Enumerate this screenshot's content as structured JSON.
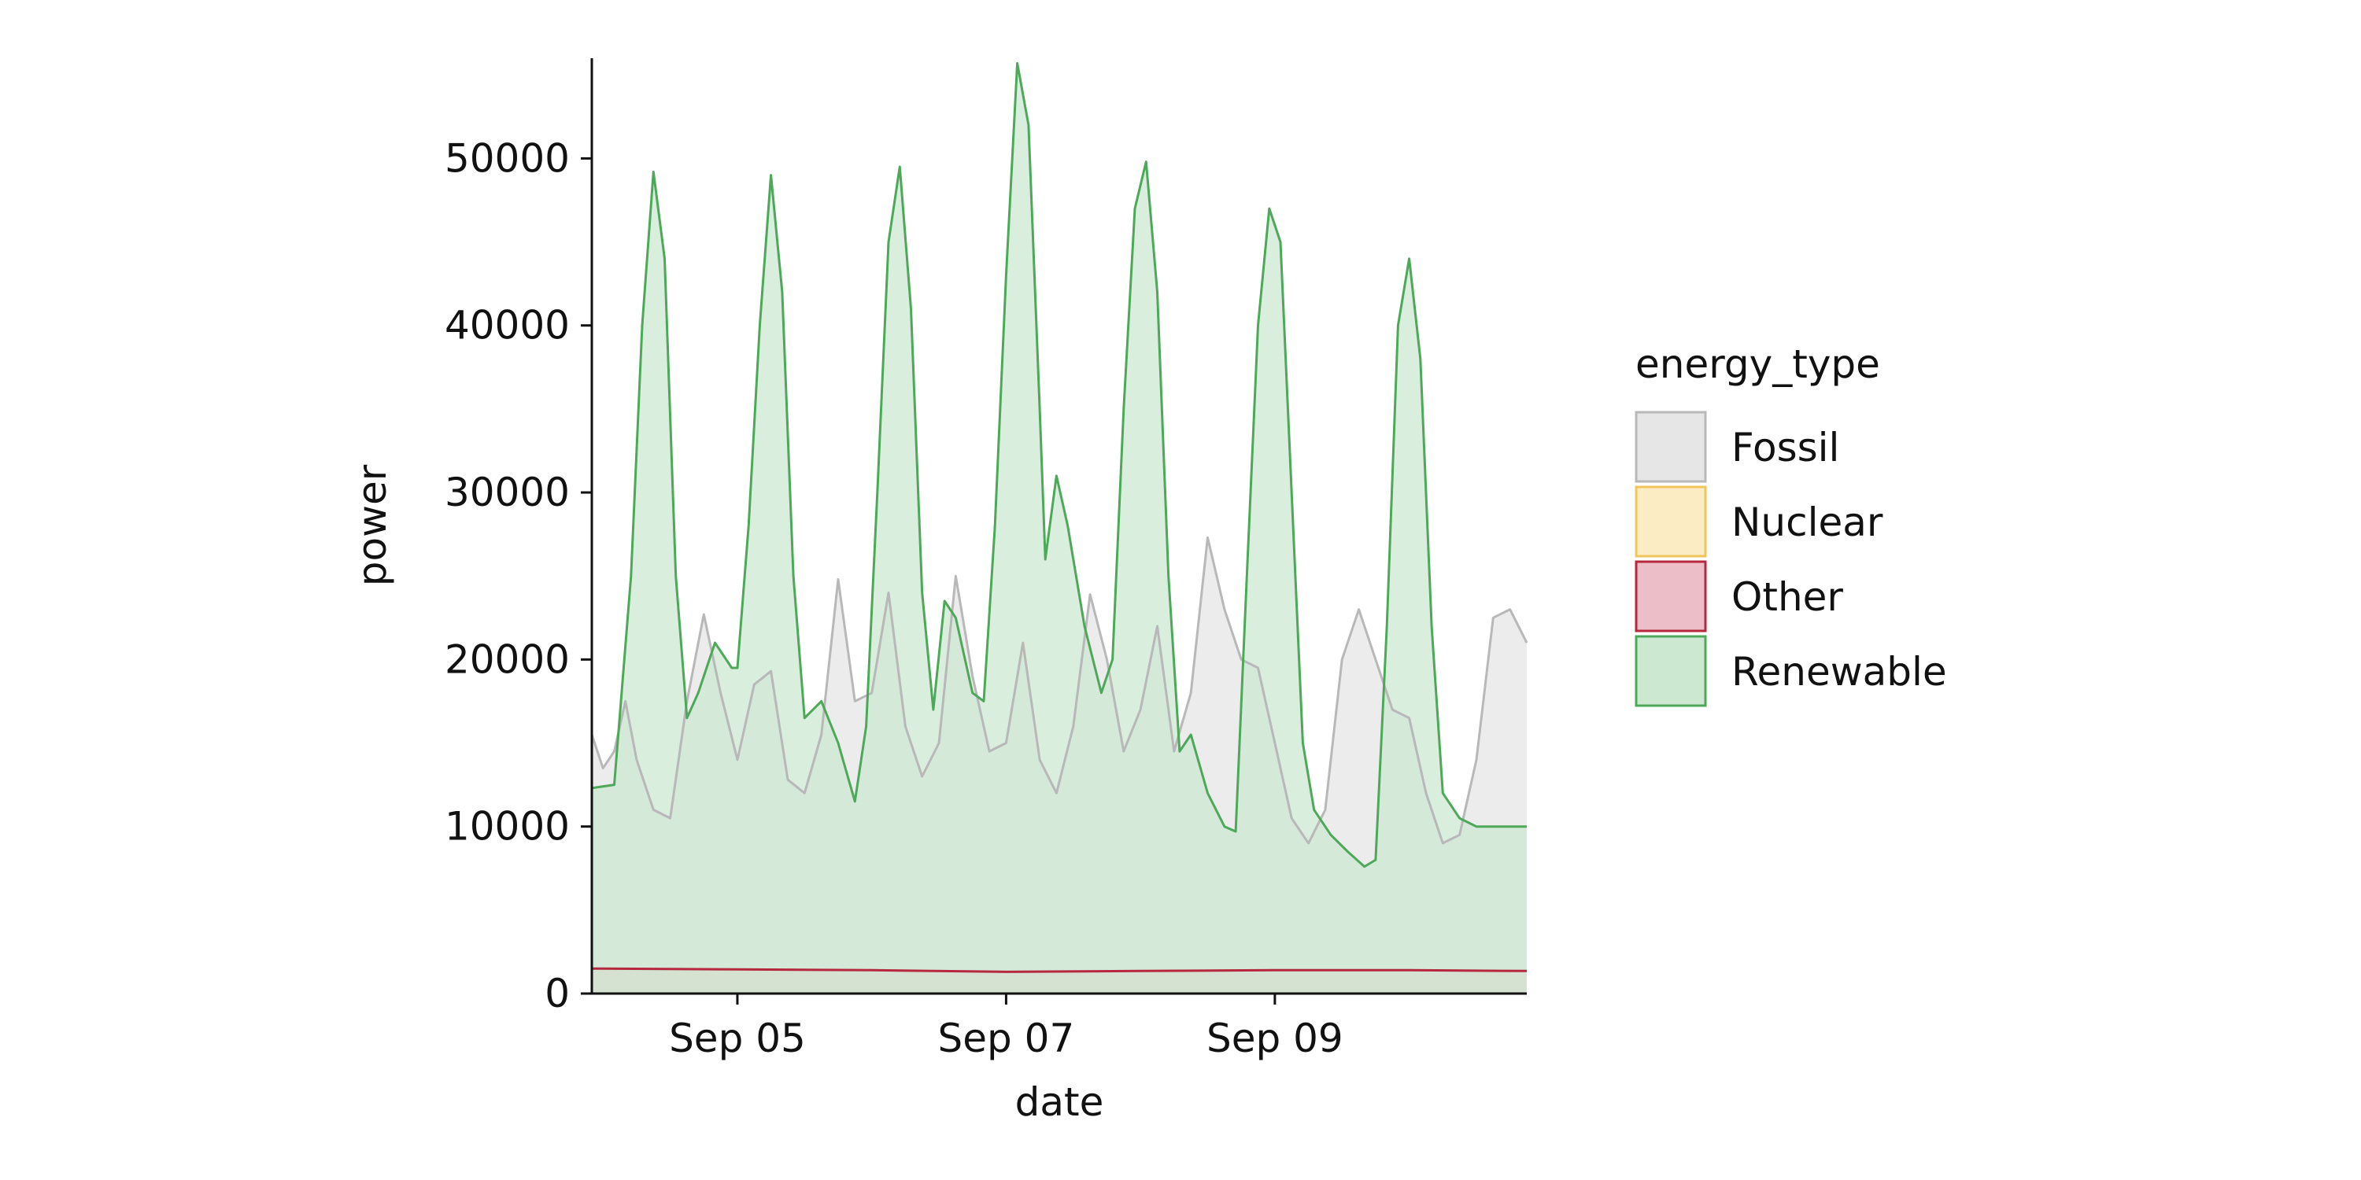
{
  "chart_data": {
    "type": "area",
    "title": "",
    "xlabel": "date",
    "ylabel": "power",
    "xlim": [
      "2022-09-03T22:00",
      "2022-09-10T21:00"
    ],
    "ylim": [
      0,
      56000
    ],
    "x_ticks": [
      {
        "date": "2022-09-05T00:00",
        "label": "Sep 05"
      },
      {
        "date": "2022-09-07T00:00",
        "label": "Sep 07"
      },
      {
        "date": "2022-09-09T00:00",
        "label": "Sep 09"
      }
    ],
    "y_ticks": [
      0,
      10000,
      20000,
      30000,
      40000,
      50000
    ],
    "grid": false,
    "legend": {
      "title": "energy_type",
      "placement": "right"
    },
    "series": [
      {
        "name": "Fossil",
        "color": "#b8b8b8",
        "fill": "#e6e6e6",
        "points": [
          [
            "2022-09-03T22:00",
            15500
          ],
          [
            "2022-09-04T00:00",
            13500
          ],
          [
            "2022-09-04T02:00",
            14500
          ],
          [
            "2022-09-04T04:00",
            17500
          ],
          [
            "2022-09-04T06:00",
            14000
          ],
          [
            "2022-09-04T09:00",
            11000
          ],
          [
            "2022-09-04T12:00",
            10500
          ],
          [
            "2022-09-04T15:00",
            17500
          ],
          [
            "2022-09-04T18:00",
            22700
          ],
          [
            "2022-09-04T21:00",
            18000
          ],
          [
            "2022-09-05T00:00",
            14000
          ],
          [
            "2022-09-05T03:00",
            18500
          ],
          [
            "2022-09-05T06:00",
            19300
          ],
          [
            "2022-09-05T09:00",
            12800
          ],
          [
            "2022-09-05T12:00",
            12000
          ],
          [
            "2022-09-05T15:00",
            15500
          ],
          [
            "2022-09-05T18:00",
            24800
          ],
          [
            "2022-09-05T21:00",
            17500
          ],
          [
            "2022-09-06T00:00",
            18000
          ],
          [
            "2022-09-06T03:00",
            24000
          ],
          [
            "2022-09-06T06:00",
            16000
          ],
          [
            "2022-09-06T09:00",
            13000
          ],
          [
            "2022-09-06T12:00",
            15000
          ],
          [
            "2022-09-06T15:00",
            25000
          ],
          [
            "2022-09-06T18:00",
            19000
          ],
          [
            "2022-09-06T21:00",
            14500
          ],
          [
            "2022-09-07T00:00",
            15000
          ],
          [
            "2022-09-07T03:00",
            21000
          ],
          [
            "2022-09-07T06:00",
            14000
          ],
          [
            "2022-09-07T09:00",
            12000
          ],
          [
            "2022-09-07T12:00",
            16000
          ],
          [
            "2022-09-07T15:00",
            23900
          ],
          [
            "2022-09-07T18:00",
            20000
          ],
          [
            "2022-09-07T21:00",
            14500
          ],
          [
            "2022-09-08T00:00",
            17000
          ],
          [
            "2022-09-08T03:00",
            22000
          ],
          [
            "2022-09-08T06:00",
            14500
          ],
          [
            "2022-09-08T09:00",
            18000
          ],
          [
            "2022-09-08T12:00",
            27300
          ],
          [
            "2022-09-08T15:00",
            23000
          ],
          [
            "2022-09-08T18:00",
            20000
          ],
          [
            "2022-09-08T21:00",
            19500
          ],
          [
            "2022-09-09T00:00",
            15000
          ],
          [
            "2022-09-09T03:00",
            10500
          ],
          [
            "2022-09-09T06:00",
            9000
          ],
          [
            "2022-09-09T09:00",
            11000
          ],
          [
            "2022-09-09T12:00",
            20000
          ],
          [
            "2022-09-09T15:00",
            23000
          ],
          [
            "2022-09-09T18:00",
            20000
          ],
          [
            "2022-09-09T21:00",
            17000
          ],
          [
            "2022-09-10T00:00",
            16500
          ],
          [
            "2022-09-10T03:00",
            12000
          ],
          [
            "2022-09-10T06:00",
            9000
          ],
          [
            "2022-09-10T09:00",
            9500
          ],
          [
            "2022-09-10T12:00",
            14000
          ],
          [
            "2022-09-10T15:00",
            22500
          ],
          [
            "2022-09-10T18:00",
            23000
          ],
          [
            "2022-09-10T21:00",
            21000
          ]
        ]
      },
      {
        "name": "Nuclear",
        "color": "#f2c45c",
        "fill": "#fbecc4",
        "points": [
          [
            "2022-09-03T22:00",
            0
          ],
          [
            "2022-09-10T21:00",
            0
          ]
        ]
      },
      {
        "name": "Other",
        "color": "#b5283e",
        "fill": "#ecbec7",
        "points": [
          [
            "2022-09-03T22:00",
            1500
          ],
          [
            "2022-09-05T00:00",
            1450
          ],
          [
            "2022-09-06T00:00",
            1400
          ],
          [
            "2022-09-07T00:00",
            1300
          ],
          [
            "2022-09-08T00:00",
            1350
          ],
          [
            "2022-09-09T00:00",
            1400
          ],
          [
            "2022-09-10T00:00",
            1400
          ],
          [
            "2022-09-10T21:00",
            1350
          ]
        ]
      },
      {
        "name": "Renewable",
        "color": "#4da85a",
        "fill": "#cde8d1",
        "points": [
          [
            "2022-09-03T22:00",
            12300
          ],
          [
            "2022-09-04T02:00",
            12500
          ],
          [
            "2022-09-04T05:00",
            25000
          ],
          [
            "2022-09-04T07:00",
            40000
          ],
          [
            "2022-09-04T09:00",
            49200
          ],
          [
            "2022-09-04T11:00",
            44000
          ],
          [
            "2022-09-04T13:00",
            25000
          ],
          [
            "2022-09-04T15:00",
            16500
          ],
          [
            "2022-09-04T17:00",
            18000
          ],
          [
            "2022-09-04T20:00",
            21000
          ],
          [
            "2022-09-04T23:00",
            19500
          ],
          [
            "2022-09-05T00:00",
            19500
          ],
          [
            "2022-09-05T02:00",
            28000
          ],
          [
            "2022-09-05T04:00",
            40000
          ],
          [
            "2022-09-05T06:00",
            49000
          ],
          [
            "2022-09-05T08:00",
            42000
          ],
          [
            "2022-09-05T10:00",
            25000
          ],
          [
            "2022-09-05T12:00",
            16500
          ],
          [
            "2022-09-05T15:00",
            17500
          ],
          [
            "2022-09-05T18:00",
            15000
          ],
          [
            "2022-09-05T21:00",
            11500
          ],
          [
            "2022-09-05T23:00",
            16000
          ],
          [
            "2022-09-06T01:00",
            30000
          ],
          [
            "2022-09-06T03:00",
            45000
          ],
          [
            "2022-09-06T05:00",
            49500
          ],
          [
            "2022-09-06T07:00",
            41000
          ],
          [
            "2022-09-06T09:00",
            24000
          ],
          [
            "2022-09-06T11:00",
            17000
          ],
          [
            "2022-09-06T13:00",
            23500
          ],
          [
            "2022-09-06T15:00",
            22500
          ],
          [
            "2022-09-06T18:00",
            18000
          ],
          [
            "2022-09-06T20:00",
            17500
          ],
          [
            "2022-09-06T22:00",
            28000
          ],
          [
            "2022-09-07T00:00",
            43000
          ],
          [
            "2022-09-07T02:00",
            55700
          ],
          [
            "2022-09-07T04:00",
            52000
          ],
          [
            "2022-09-07T06:00",
            35000
          ],
          [
            "2022-09-07T07:00",
            26000
          ],
          [
            "2022-09-07T09:00",
            31000
          ],
          [
            "2022-09-07T11:00",
            28000
          ],
          [
            "2022-09-07T14:00",
            22000
          ],
          [
            "2022-09-07T17:00",
            18000
          ],
          [
            "2022-09-07T19:00",
            20000
          ],
          [
            "2022-09-07T21:00",
            35000
          ],
          [
            "2022-09-07T23:00",
            47000
          ],
          [
            "2022-09-08T01:00",
            49800
          ],
          [
            "2022-09-08T03:00",
            42000
          ],
          [
            "2022-09-08T05:00",
            25000
          ],
          [
            "2022-09-08T07:00",
            14500
          ],
          [
            "2022-09-08T09:00",
            15500
          ],
          [
            "2022-09-08T12:00",
            12000
          ],
          [
            "2022-09-08T15:00",
            10000
          ],
          [
            "2022-09-08T17:00",
            9700
          ],
          [
            "2022-09-08T19:00",
            25000
          ],
          [
            "2022-09-08T21:00",
            40000
          ],
          [
            "2022-09-08T23:00",
            47000
          ],
          [
            "2022-09-09T01:00",
            45000
          ],
          [
            "2022-09-09T03:00",
            30000
          ],
          [
            "2022-09-09T05:00",
            15000
          ],
          [
            "2022-09-09T07:00",
            11000
          ],
          [
            "2022-09-09T10:00",
            9500
          ],
          [
            "2022-09-09T13:00",
            8500
          ],
          [
            "2022-09-09T16:00",
            7600
          ],
          [
            "2022-09-09T18:00",
            8000
          ],
          [
            "2022-09-09T20:00",
            22000
          ],
          [
            "2022-09-09T22:00",
            40000
          ],
          [
            "2022-09-10T00:00",
            44000
          ],
          [
            "2022-09-10T02:00",
            38000
          ],
          [
            "2022-09-10T04:00",
            22000
          ],
          [
            "2022-09-10T06:00",
            12000
          ],
          [
            "2022-09-10T09:00",
            10500
          ],
          [
            "2022-09-10T12:00",
            10000
          ],
          [
            "2022-09-10T15:00",
            10000
          ],
          [
            "2022-09-10T21:00",
            10000
          ]
        ]
      }
    ]
  }
}
